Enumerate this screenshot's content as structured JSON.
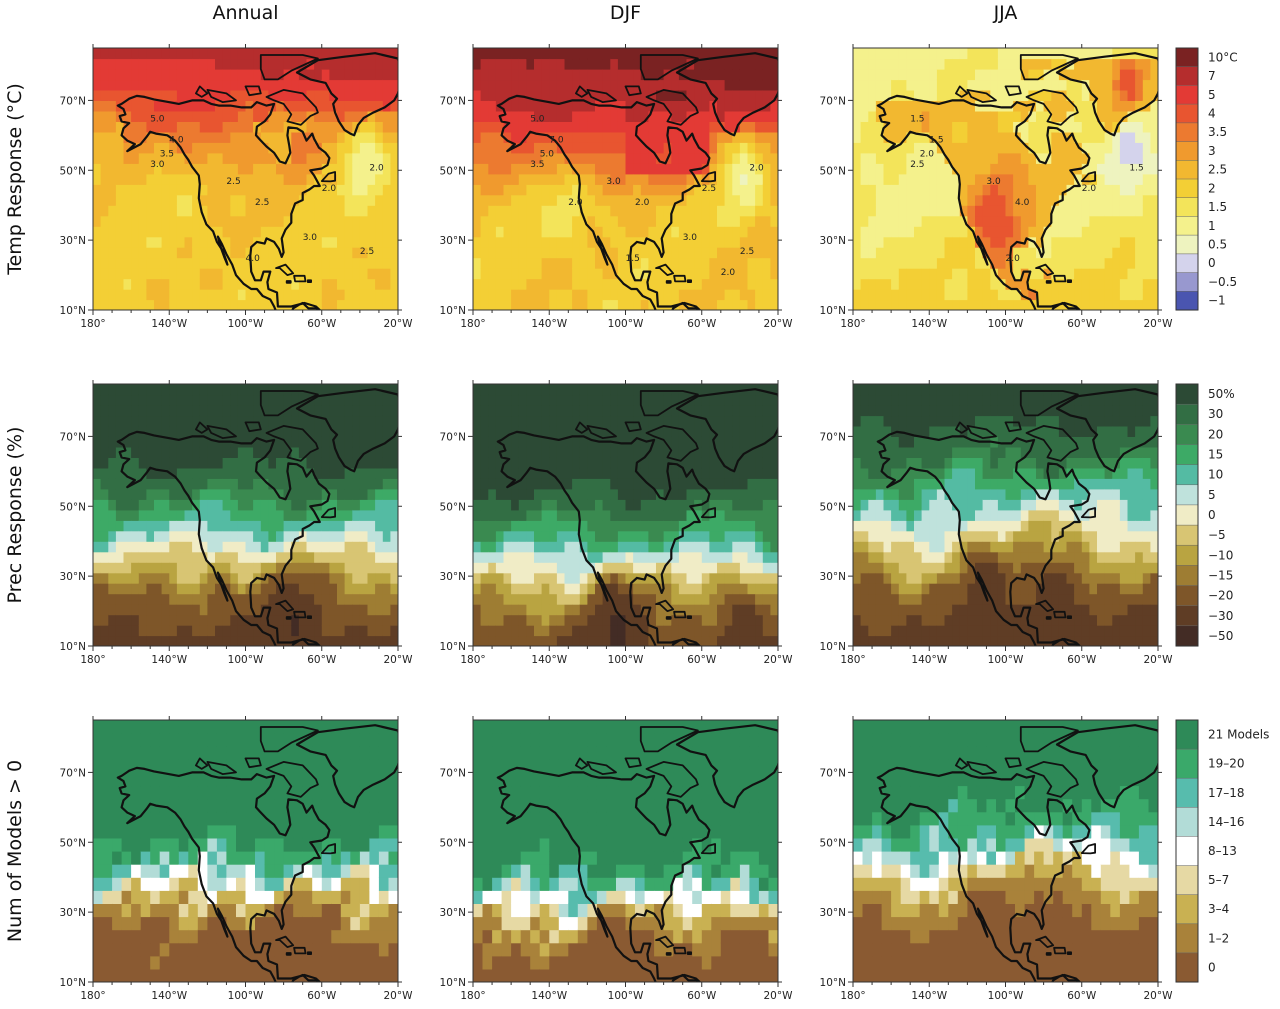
{
  "columns": [
    {
      "title": "Annual"
    },
    {
      "title": "DJF"
    },
    {
      "title": "JJA"
    }
  ],
  "rows": [
    {
      "label": "Temp Response (°C)"
    },
    {
      "label": "Prec Response (%)"
    },
    {
      "label": "Num of Models > 0"
    }
  ],
  "axes": {
    "lon_ticks": [
      "180°",
      "140°W",
      "100°W",
      "60°W",
      "20°W"
    ],
    "lat_ticks": [
      "10°N",
      "30°N",
      "50°N",
      "70°N"
    ]
  },
  "legends": [
    {
      "name": "temp",
      "labels": [
        "10°C",
        "7",
        "5",
        "4",
        "3.5",
        "3",
        "2.5",
        "2",
        "1.5",
        "1",
        "0.5",
        "0",
        "−0.5",
        "−1"
      ],
      "colors": [
        "#7a2222",
        "#b52d2d",
        "#e33a35",
        "#e85530",
        "#ec7a30",
        "#f09a2e",
        "#f2b830",
        "#f3cf35",
        "#f3e45a",
        "#f4f18c",
        "#eef3bf",
        "#d4d3ec",
        "#9898cf",
        "#4a55b0"
      ]
    },
    {
      "name": "prec",
      "labels": [
        "50%",
        "30",
        "20",
        "15",
        "10",
        "5",
        "0",
        "−5",
        "−10",
        "−15",
        "−20",
        "−30",
        "−50"
      ],
      "colors": [
        "#2c4a35",
        "#326e44",
        "#3a8a50",
        "#3daa66",
        "#54bba3",
        "#bfe2dc",
        "#f0ecc6",
        "#d8c573",
        "#b9a441",
        "#9e7d33",
        "#7e5629",
        "#5f3d25",
        "#432c25"
      ]
    },
    {
      "name": "models",
      "labels": [
        "21 Models",
        "19–20",
        "17–18",
        "14–16",
        "8–13",
        "5–7",
        "3–4",
        "1–2",
        "0"
      ],
      "colors": [
        "#2e8a58",
        "#3aa96a",
        "#57bcad",
        "#b2dcd7",
        "#ffffff",
        "#e6d9a4",
        "#c9b152",
        "#a9823a",
        "#8a5a32"
      ]
    }
  ],
  "panels": [
    {
      "row": 0,
      "col": 0,
      "contour_labels": [
        "5.0",
        "4.0",
        "3.5",
        "3.0",
        "2.5",
        "2.0",
        "2.0",
        "2.5",
        "4.0",
        "3.0",
        "2.5"
      ]
    },
    {
      "row": 0,
      "col": 1,
      "contour_labels": [
        "5.0",
        "7.0",
        "5.0",
        "3.5",
        "3.0",
        "2.5",
        "2.0",
        "2.0",
        "1.5",
        "3.0",
        "2.5",
        "2.0",
        "2.0"
      ]
    },
    {
      "row": 0,
      "col": 2,
      "contour_labels": [
        "1.5",
        "1.5",
        "2.0",
        "2.5",
        "3.0",
        "2.0",
        "1.5",
        "4.0",
        "2.0"
      ]
    },
    {
      "row": 1,
      "col": 0
    },
    {
      "row": 1,
      "col": 1
    },
    {
      "row": 1,
      "col": 2
    },
    {
      "row": 2,
      "col": 0
    },
    {
      "row": 2,
      "col": 1
    },
    {
      "row": 2,
      "col": 2
    }
  ]
}
